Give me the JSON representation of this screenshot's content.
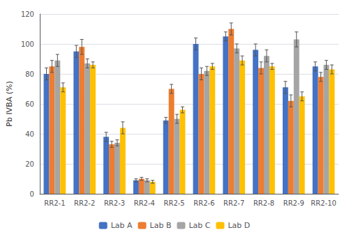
{
  "chart_data": {
    "type": "bar",
    "categories": [
      "RR2-1",
      "RR2-2",
      "RR2-3",
      "RR2-4",
      "RR2-5",
      "RR2-6",
      "RR2-7",
      "RR2-8",
      "RR2-9",
      "RR2-10"
    ],
    "series": [
      {
        "name": "Lab A",
        "color": "#4472C4",
        "values": [
          80,
          95,
          38,
          9,
          49,
          100,
          105,
          96,
          71,
          85
        ],
        "errors": [
          4,
          4,
          3,
          1,
          2,
          4,
          3,
          4,
          4,
          3
        ]
      },
      {
        "name": "Lab B",
        "color": "#ED7D31",
        "values": [
          85,
          98,
          33,
          10,
          70,
          80,
          110,
          84,
          62,
          78
        ],
        "errors": [
          4,
          5,
          2,
          1,
          3,
          4,
          4,
          4,
          4,
          3
        ]
      },
      {
        "name": "Lab C",
        "color": "#A5A5A5",
        "values": [
          89,
          87,
          34,
          9,
          50,
          82,
          97,
          92,
          103,
          86
        ],
        "errors": [
          4,
          3,
          2,
          1,
          3,
          3,
          3,
          4,
          5,
          3
        ]
      },
      {
        "name": "Lab D",
        "color": "#FFC000",
        "values": [
          71,
          86,
          44,
          8,
          56,
          85,
          89,
          85,
          65,
          83
        ],
        "errors": [
          3,
          2,
          4,
          1,
          2,
          2,
          3,
          2,
          3,
          3
        ]
      }
    ],
    "ylabel": "Pb IVBA (%)",
    "ylim": [
      0,
      120
    ],
    "yticks": [
      0,
      20,
      40,
      60,
      80,
      100,
      120
    ],
    "grid": true,
    "legend": "bottom"
  }
}
